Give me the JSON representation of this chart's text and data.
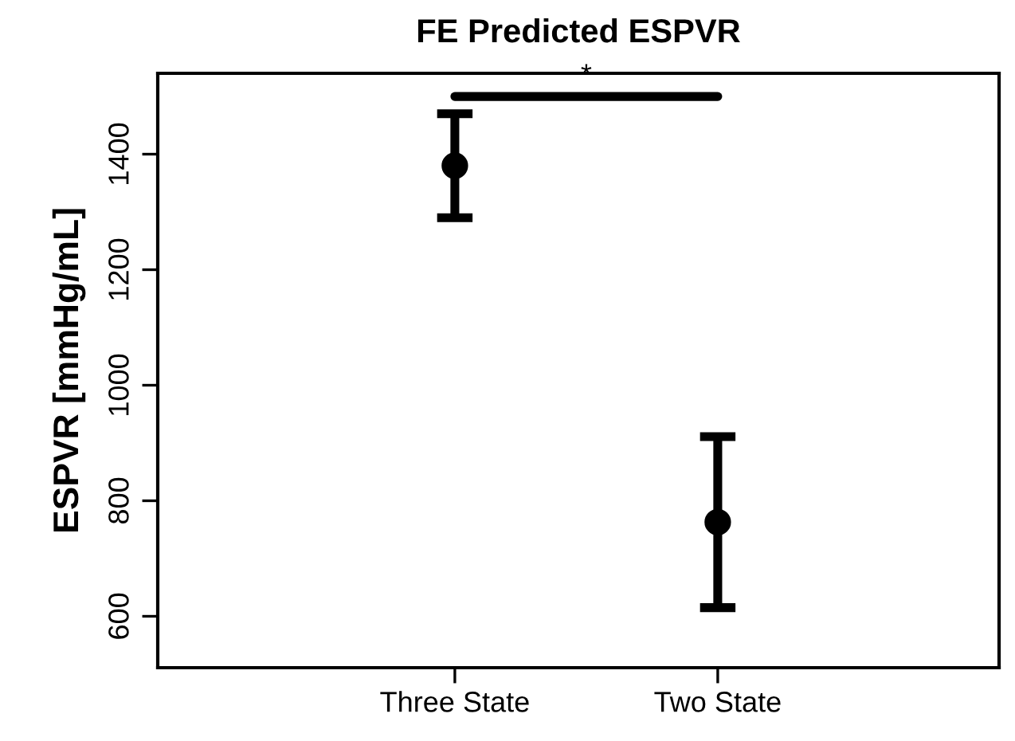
{
  "chart_data": {
    "type": "scatter",
    "title": "FE Predicted ESPVR",
    "ylabel": "ESPVR [mmHg/mL]",
    "categories": [
      "Three State",
      "Two State"
    ],
    "series": [
      {
        "color": "#000000",
        "values": [
          1380,
          763
        ],
        "errors": [
          90,
          148
        ]
      }
    ],
    "ylim": [
      511,
      1540
    ],
    "yticks": [
      600,
      800,
      1000,
      1200,
      1400
    ],
    "grid": false,
    "marker": "circle",
    "annotations": [
      "*"
    ]
  }
}
